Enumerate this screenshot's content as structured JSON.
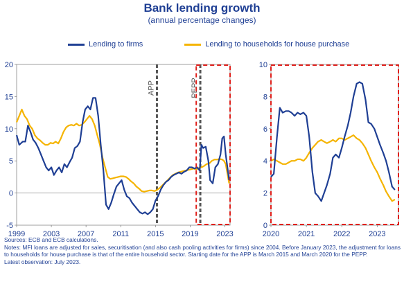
{
  "title": "Bank lending growth",
  "subtitle": "(annual percentage changes)",
  "colors": {
    "firms": "#1f3f94",
    "households": "#f5b400",
    "annotation": "#e0201b",
    "vline": "#555555",
    "axis": "#888888"
  },
  "notes": {
    "sources": "Sources: ECB and ECB calculations.",
    "notes": "Notes: MFI loans are adjusted for sales, securitisation (and also cash pooling activities for firms) since 2004. Before January 2023, the adjustment for loans to households for house purchase is that of the entire household sector. Starting date for the APP is March 2015 and March 2020 for the PEPP.",
    "latest": "Latest observation: July 2023."
  },
  "chart_data": [
    {
      "type": "line",
      "title": "",
      "xlabel": "",
      "ylabel": "",
      "xlim": [
        1999,
        2023.6
      ],
      "ylim": [
        -5,
        20
      ],
      "yticks": [
        -5,
        0,
        5,
        10,
        15,
        20
      ],
      "xticks": [
        1999,
        2003,
        2007,
        2011,
        2015,
        2019,
        2023
      ],
      "legend_position": "top",
      "annotations": [
        {
          "label": "APP",
          "x": 2015.17
        },
        {
          "label": "PEPP",
          "x": 2020.17
        }
      ],
      "series": [
        {
          "name": "Lending to firms",
          "x": [
            1999,
            1999.3,
            1999.7,
            2000,
            2000.3,
            2000.6,
            2000.9,
            2001.2,
            2001.5,
            2001.8,
            2002.1,
            2002.4,
            2002.7,
            2003,
            2003.3,
            2003.6,
            2003.9,
            2004.2,
            2004.5,
            2004.8,
            2005.1,
            2005.4,
            2005.7,
            2006,
            2006.3,
            2006.6,
            2006.9,
            2007.2,
            2007.5,
            2007.8,
            2008.1,
            2008.4,
            2008.7,
            2009,
            2009.3,
            2009.6,
            2009.9,
            2010.2,
            2010.5,
            2010.8,
            2011.1,
            2011.4,
            2011.7,
            2012,
            2012.3,
            2012.6,
            2012.9,
            2013.2,
            2013.5,
            2013.8,
            2014.1,
            2014.4,
            2014.7,
            2015,
            2015.3,
            2015.6,
            2015.9,
            2016.2,
            2016.5,
            2016.8,
            2017.1,
            2017.4,
            2017.7,
            2018,
            2018.3,
            2018.6,
            2018.9,
            2019.2,
            2019.5,
            2019.8,
            2020.1,
            2020.3,
            2020.5,
            2020.8,
            2021.1,
            2021.3,
            2021.6,
            2021.9,
            2022.2,
            2022.5,
            2022.7,
            2022.9,
            2023.1,
            2023.3,
            2023.5
          ],
          "values": [
            9.0,
            7.5,
            8.0,
            8.0,
            10.5,
            9.5,
            8.3,
            7.8,
            7.0,
            6.0,
            5.0,
            4.0,
            3.5,
            4.0,
            2.8,
            3.5,
            4.0,
            3.2,
            4.5,
            4.0,
            4.8,
            5.5,
            7.0,
            7.3,
            8.0,
            11.0,
            13.0,
            13.5,
            13.0,
            14.8,
            14.8,
            12.0,
            7.5,
            3.5,
            -1.8,
            -2.5,
            -1.5,
            -0.2,
            1.0,
            1.5,
            2.0,
            0.5,
            -0.5,
            -0.8,
            -1.5,
            -2.0,
            -2.5,
            -3.0,
            -3.2,
            -3.0,
            -3.3,
            -3.0,
            -2.5,
            -1.2,
            -0.5,
            0.5,
            1.2,
            1.7,
            2.0,
            2.5,
            2.8,
            3.0,
            3.2,
            3.0,
            3.3,
            3.5,
            4.0,
            4.0,
            3.8,
            4.0,
            3.5,
            7.5,
            7.0,
            7.2,
            5.0,
            2.0,
            1.5,
            4.0,
            4.5,
            6.0,
            8.5,
            8.8,
            6.0,
            4.0,
            2.0
          ]
        },
        {
          "name": "Lending to households for house purchase",
          "x": [
            1999,
            1999.3,
            1999.6,
            1999.9,
            2000.2,
            2000.5,
            2000.8,
            2001.1,
            2001.4,
            2001.7,
            2002,
            2002.3,
            2002.6,
            2002.9,
            2003.2,
            2003.5,
            2003.8,
            2004.1,
            2004.4,
            2004.7,
            2005,
            2005.3,
            2005.6,
            2005.9,
            2006.2,
            2006.5,
            2006.8,
            2007.1,
            2007.4,
            2007.7,
            2008,
            2008.3,
            2008.6,
            2008.9,
            2009.2,
            2009.5,
            2009.8,
            2010.1,
            2010.4,
            2010.7,
            2011,
            2011.3,
            2011.6,
            2011.9,
            2012.2,
            2012.5,
            2012.8,
            2013.1,
            2013.4,
            2013.7,
            2014,
            2014.3,
            2014.6,
            2014.9,
            2015.2,
            2015.5,
            2015.8,
            2016.1,
            2016.4,
            2016.7,
            2017,
            2017.3,
            2017.6,
            2017.9,
            2018.2,
            2018.5,
            2018.8,
            2019.1,
            2019.4,
            2019.7,
            2020,
            2020.3,
            2020.6,
            2020.9,
            2021.2,
            2021.5,
            2021.8,
            2022.1,
            2022.4,
            2022.7,
            2022.9,
            2023.1,
            2023.3,
            2023.5
          ],
          "values": [
            11.0,
            12.0,
            13.0,
            12.0,
            11.5,
            10.5,
            10.0,
            9.0,
            8.5,
            8.2,
            7.8,
            7.5,
            7.5,
            7.8,
            7.7,
            8.0,
            7.7,
            8.5,
            9.5,
            10.2,
            10.5,
            10.6,
            10.5,
            10.8,
            10.5,
            10.6,
            11.0,
            11.5,
            12.0,
            11.5,
            10.5,
            9.0,
            7.5,
            5.5,
            4.0,
            2.5,
            2.2,
            2.3,
            2.4,
            2.5,
            2.6,
            2.6,
            2.5,
            2.2,
            1.8,
            1.5,
            1.0,
            0.7,
            0.3,
            0.2,
            0.3,
            0.4,
            0.4,
            0.3,
            0.5,
            0.8,
            1.2,
            1.6,
            2.0,
            2.4,
            2.8,
            3.0,
            3.2,
            3.3,
            3.4,
            3.5,
            3.6,
            3.7,
            3.8,
            3.7,
            3.9,
            4.0,
            4.2,
            4.5,
            4.6,
            5.0,
            5.2,
            5.2,
            5.3,
            5.2,
            5.0,
            4.5,
            3.0,
            1.5
          ]
        }
      ]
    },
    {
      "type": "line",
      "title": "",
      "xlabel": "",
      "ylabel": "",
      "xlim": [
        2020,
        2023.6
      ],
      "ylim": [
        0,
        10
      ],
      "yticks": [
        0,
        2,
        4,
        6,
        8,
        10
      ],
      "xticks": [
        2020,
        2021,
        2022,
        2023
      ],
      "series": [
        {
          "name": "Lending to firms",
          "x": [
            2020,
            2020.08,
            2020.17,
            2020.25,
            2020.33,
            2020.42,
            2020.5,
            2020.58,
            2020.67,
            2020.75,
            2020.83,
            2020.92,
            2021,
            2021.08,
            2021.17,
            2021.25,
            2021.33,
            2021.42,
            2021.5,
            2021.58,
            2021.67,
            2021.75,
            2021.83,
            2021.92,
            2022,
            2022.08,
            2022.17,
            2022.25,
            2022.33,
            2022.42,
            2022.5,
            2022.58,
            2022.67,
            2022.75,
            2022.83,
            2022.92,
            2023,
            2023.08,
            2023.17,
            2023.25,
            2023.33,
            2023.42,
            2023.5
          ],
          "values": [
            3.0,
            3.2,
            5.5,
            7.3,
            7.0,
            7.1,
            7.1,
            7.0,
            6.8,
            7.0,
            6.9,
            7.0,
            6.8,
            5.5,
            3.3,
            2.0,
            1.8,
            1.5,
            2.0,
            2.5,
            3.2,
            4.2,
            4.4,
            4.2,
            4.8,
            5.5,
            6.2,
            7.0,
            8.0,
            8.8,
            8.9,
            8.8,
            7.8,
            6.4,
            6.3,
            6.0,
            5.5,
            5.0,
            4.5,
            4.0,
            3.3,
            2.4,
            2.2
          ]
        },
        {
          "name": "Lending to households for house purchase",
          "x": [
            2020,
            2020.08,
            2020.17,
            2020.25,
            2020.33,
            2020.42,
            2020.5,
            2020.58,
            2020.67,
            2020.75,
            2020.83,
            2020.92,
            2021,
            2021.08,
            2021.17,
            2021.25,
            2021.33,
            2021.42,
            2021.5,
            2021.58,
            2021.67,
            2021.75,
            2021.83,
            2021.92,
            2022,
            2022.08,
            2022.17,
            2022.25,
            2022.33,
            2022.42,
            2022.5,
            2022.58,
            2022.67,
            2022.75,
            2022.83,
            2022.92,
            2023,
            2023.08,
            2023.17,
            2023.25,
            2023.33,
            2023.42,
            2023.5
          ],
          "values": [
            4.0,
            4.1,
            4.0,
            3.9,
            3.8,
            3.8,
            3.9,
            4.0,
            4.0,
            4.1,
            4.1,
            4.0,
            4.2,
            4.5,
            4.8,
            5.0,
            5.2,
            5.3,
            5.2,
            5.1,
            5.2,
            5.3,
            5.2,
            5.4,
            5.4,
            5.3,
            5.4,
            5.5,
            5.6,
            5.4,
            5.3,
            5.1,
            4.8,
            4.4,
            4.0,
            3.6,
            3.3,
            2.9,
            2.5,
            2.1,
            1.8,
            1.5,
            1.6
          ]
        }
      ]
    }
  ]
}
